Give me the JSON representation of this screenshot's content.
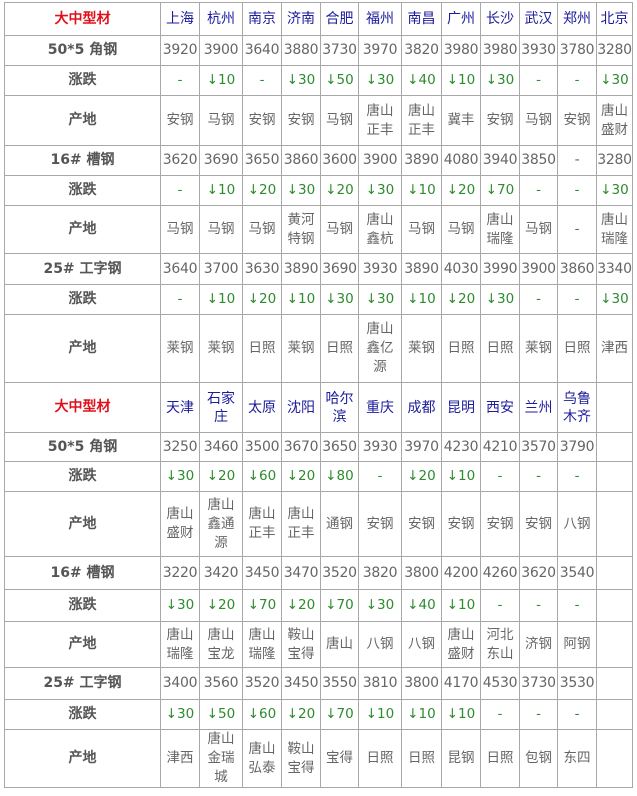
{
  "colors": {
    "header": "#e0101a",
    "city": "#1c1c9c",
    "change": "#2e8b2e",
    "text": "#666666",
    "border": "#a8a8a8"
  },
  "row_labels": {
    "change": "涨跌",
    "origin": "产地"
  },
  "sections": [
    {
      "title": "大中型材",
      "cities": [
        "上海",
        "杭州",
        "南京",
        "济南",
        "合肥",
        "福州",
        "南昌",
        "广州",
        "长沙",
        "武汉",
        "郑州",
        "北京"
      ],
      "products": [
        {
          "name": "50*5 角钢",
          "prices": [
            "3920",
            "3900",
            "3640",
            "3880",
            "3730",
            "3970",
            "3820",
            "3980",
            "3980",
            "3930",
            "3780",
            "3280"
          ],
          "changes": [
            "-",
            "↓10",
            "-",
            "↓30",
            "↓50",
            "↓30",
            "↓40",
            "↓10",
            "↓30",
            "-",
            "-",
            "↓30"
          ],
          "origins": [
            "安钢",
            "马钢",
            "安钢",
            "安钢",
            "马钢",
            "唐山正丰",
            "唐山正丰",
            "冀丰",
            "安钢",
            "马钢",
            "安钢",
            "唐山盛财"
          ]
        },
        {
          "name": "16# 槽钢",
          "prices": [
            "3620",
            "3690",
            "3650",
            "3860",
            "3600",
            "3900",
            "3890",
            "4080",
            "3940",
            "3850",
            "-",
            "3280"
          ],
          "changes": [
            "-",
            "↓10",
            "↓20",
            "↓30",
            "↓20",
            "↓30",
            "↓10",
            "↓20",
            "↓70",
            "-",
            "-",
            "↓30"
          ],
          "origins": [
            "马钢",
            "马钢",
            "马钢",
            "黄河特钢",
            "马钢",
            "唐山鑫杭",
            "马钢",
            "马钢",
            "唐山瑞隆",
            "马钢",
            "-",
            "唐山瑞隆"
          ]
        },
        {
          "name": "25# 工字钢",
          "prices": [
            "3640",
            "3700",
            "3630",
            "3890",
            "3690",
            "3930",
            "3890",
            "4030",
            "3990",
            "3900",
            "3860",
            "3340"
          ],
          "changes": [
            "-",
            "↓10",
            "↓20",
            "↓10",
            "↓30",
            "↓30",
            "↓10",
            "↓20",
            "↓30",
            "-",
            "-",
            "↓30"
          ],
          "origins": [
            "莱钢",
            "莱钢",
            "日照",
            "莱钢",
            "日照",
            "唐山鑫亿源",
            "莱钢",
            "日照",
            "日照",
            "莱钢",
            "日照",
            "津西"
          ]
        }
      ]
    },
    {
      "title": "大中型材",
      "cities": [
        "天津",
        "石家庄",
        "太原",
        "沈阳",
        "哈尔滨",
        "重庆",
        "成都",
        "昆明",
        "西安",
        "兰州",
        "乌鲁木齐",
        ""
      ],
      "products": [
        {
          "name": "50*5 角钢",
          "prices": [
            "3250",
            "3460",
            "3500",
            "3670",
            "3650",
            "3930",
            "3970",
            "4230",
            "4210",
            "3570",
            "3790",
            ""
          ],
          "changes": [
            "↓30",
            "↓20",
            "↓60",
            "↓20",
            "↓80",
            "-",
            "↓20",
            "↓10",
            "-",
            "-",
            "-",
            ""
          ],
          "origins": [
            "唐山盛财",
            "唐山鑫通源",
            "唐山正丰",
            "唐山正丰",
            "通钢",
            "安钢",
            "安钢",
            "安钢",
            "安钢",
            "安钢",
            "八钢",
            ""
          ]
        },
        {
          "name": "16# 槽钢",
          "prices": [
            "3220",
            "3420",
            "3450",
            "3470",
            "3520",
            "3820",
            "3800",
            "4200",
            "4260",
            "3620",
            "3540",
            ""
          ],
          "changes": [
            "↓30",
            "↓20",
            "↓70",
            "↓20",
            "↓70",
            "↓30",
            "↓40",
            "↓10",
            "-",
            "-",
            "-",
            ""
          ],
          "origins": [
            "唐山瑞隆",
            "唐山宝龙",
            "唐山瑞隆",
            "鞍山宝得",
            "唐山",
            "八钢",
            "八钢",
            "唐山盛财",
            "河北东山",
            "济钢",
            "阿钢",
            ""
          ]
        },
        {
          "name": "25# 工字钢",
          "prices": [
            "3400",
            "3560",
            "3520",
            "3450",
            "3550",
            "3810",
            "3800",
            "4170",
            "4530",
            "3730",
            "3530",
            ""
          ],
          "changes": [
            "↓30",
            "↓50",
            "↓60",
            "↓20",
            "↓70",
            "↓10",
            "↓10",
            "↓10",
            "-",
            "-",
            "-",
            ""
          ],
          "origins": [
            "津西",
            "唐山金瑞城",
            "唐山弘泰",
            "鞍山宝得",
            "宝得",
            "日照",
            "日照",
            "昆钢",
            "日照",
            "包钢",
            "东四",
            ""
          ]
        }
      ]
    }
  ]
}
